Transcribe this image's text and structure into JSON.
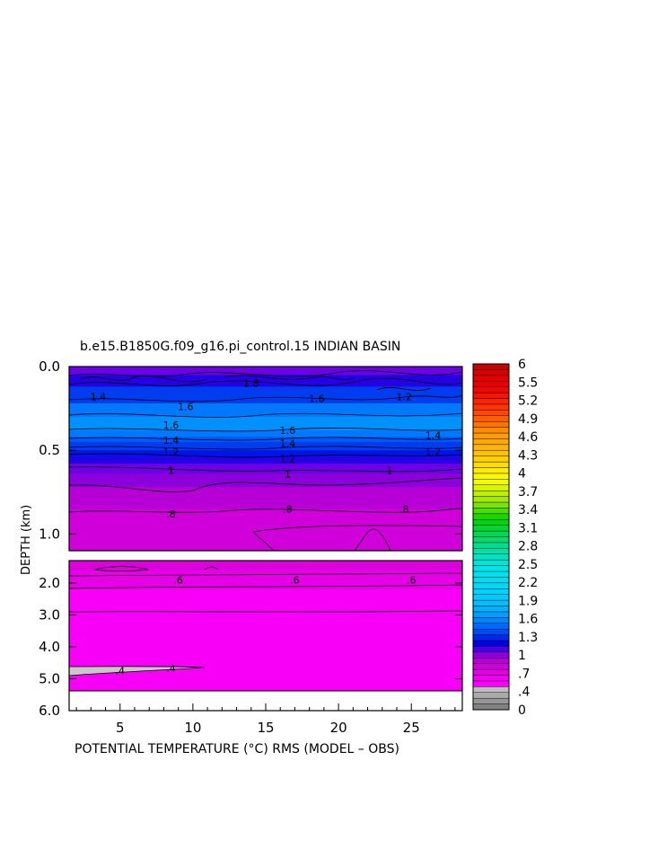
{
  "chart_data": {
    "type": "heatmap",
    "title": "b.e15.B1850G.f09_g16.pi_control.15 INDIAN BASIN",
    "xlabel": "POTENTIAL TEMPERATURE (°C) RMS (MODEL – OBS)",
    "ylabel": "DEPTH (km)",
    "xlim": [
      1.5,
      28.5
    ],
    "x_ticks": [
      {
        "value": 5,
        "label": "5"
      },
      {
        "value": 10,
        "label": "10"
      },
      {
        "value": 15,
        "label": "15"
      },
      {
        "value": 20,
        "label": "20"
      },
      {
        "value": 25,
        "label": "25"
      }
    ],
    "upper_panel": {
      "ylim": [
        0.0,
        1.1
      ],
      "y_ticks": [
        {
          "value": 0.0,
          "label": "0.0"
        },
        {
          "value": 0.5,
          "label": "0.5"
        },
        {
          "value": 1.0,
          "label": "1.0"
        }
      ],
      "bands": [
        {
          "top": 0.0,
          "bottom": 0.05,
          "value": 1.0
        },
        {
          "top": 0.05,
          "bottom": 0.12,
          "value": 1.1
        },
        {
          "top": 0.12,
          "bottom": 0.22,
          "value": 1.3
        },
        {
          "top": 0.22,
          "bottom": 0.3,
          "value": 1.5
        },
        {
          "top": 0.3,
          "bottom": 0.38,
          "value": 1.6
        },
        {
          "top": 0.38,
          "bottom": 0.42,
          "value": 1.5
        },
        {
          "top": 0.42,
          "bottom": 0.45,
          "value": 1.4
        },
        {
          "top": 0.45,
          "bottom": 0.5,
          "value": 1.3
        },
        {
          "top": 0.5,
          "bottom": 0.54,
          "value": 1.2
        },
        {
          "top": 0.54,
          "bottom": 0.58,
          "value": 1.1
        },
        {
          "top": 0.58,
          "bottom": 0.64,
          "value": 1.0
        },
        {
          "top": 0.64,
          "bottom": 0.72,
          "value": 0.95
        },
        {
          "top": 0.72,
          "bottom": 0.85,
          "value": 0.85
        },
        {
          "top": 0.85,
          "bottom": 1.1,
          "value": 0.75
        }
      ],
      "contour_labels": [
        {
          "x": 3.5,
          "y": 0.18,
          "label": "1.4"
        },
        {
          "x": 9.5,
          "y": 0.24,
          "label": "1.6"
        },
        {
          "x": 14,
          "y": 0.1,
          "label": "1.8"
        },
        {
          "x": 18.5,
          "y": 0.19,
          "label": "1.6"
        },
        {
          "x": 24.5,
          "y": 0.18,
          "label": "1.2"
        },
        {
          "x": 8.5,
          "y": 0.35,
          "label": "1.6"
        },
        {
          "x": 16.5,
          "y": 0.38,
          "label": "1.6"
        },
        {
          "x": 8.5,
          "y": 0.44,
          "label": "1.4"
        },
        {
          "x": 16.5,
          "y": 0.46,
          "label": "1.4"
        },
        {
          "x": 26.5,
          "y": 0.41,
          "label": "1.4"
        },
        {
          "x": 8.5,
          "y": 0.51,
          "label": "1.2"
        },
        {
          "x": 16.5,
          "y": 0.55,
          "label": "1.2"
        },
        {
          "x": 26.5,
          "y": 0.51,
          "label": "1.2"
        },
        {
          "x": 8.5,
          "y": 0.62,
          "label": "1"
        },
        {
          "x": 16.5,
          "y": 0.64,
          "label": "1"
        },
        {
          "x": 23.5,
          "y": 0.62,
          "label": "1"
        },
        {
          "x": 8.5,
          "y": 0.88,
          "label": ".8"
        },
        {
          "x": 16.5,
          "y": 0.85,
          "label": ".8"
        },
        {
          "x": 24.5,
          "y": 0.85,
          "label": ".8"
        }
      ]
    },
    "lower_panel": {
      "ylim": [
        1.3,
        6.0
      ],
      "bottom_of_data_km": 5.35,
      "y_ticks": [
        {
          "value": 2.0,
          "label": "2.0"
        },
        {
          "value": 3.0,
          "label": "3.0"
        },
        {
          "value": 4.0,
          "label": "4.0"
        },
        {
          "value": 5.0,
          "label": "5.0"
        },
        {
          "value": 6.0,
          "label": "6.0"
        }
      ],
      "bands": [
        {
          "top": 1.3,
          "bottom": 1.6,
          "value": 0.7
        },
        {
          "top": 1.6,
          "bottom": 2.2,
          "value": 0.62
        },
        {
          "top": 2.2,
          "bottom": 5.35,
          "value": 0.5
        }
      ],
      "contour_labels": [
        {
          "x": 9,
          "y": 1.9,
          "label": ".6"
        },
        {
          "x": 17,
          "y": 1.9,
          "label": ".6"
        },
        {
          "x": 25,
          "y": 1.9,
          "label": ".6"
        },
        {
          "x": 5,
          "y": 4.75,
          "label": ".4"
        },
        {
          "x": 8.5,
          "y": 4.68,
          "label": ".4"
        }
      ]
    },
    "colorbar": {
      "min": 0,
      "max": 6,
      "tick_labels": [
        "6",
        "5.5",
        "5.2",
        "4.9",
        "4.6",
        "4.3",
        "4",
        "3.7",
        "3.4",
        "3.1",
        "2.8",
        "2.5",
        "2.2",
        "1.9",
        "1.6",
        "1.3",
        "1",
        ".7",
        ".4",
        "0"
      ]
    }
  }
}
